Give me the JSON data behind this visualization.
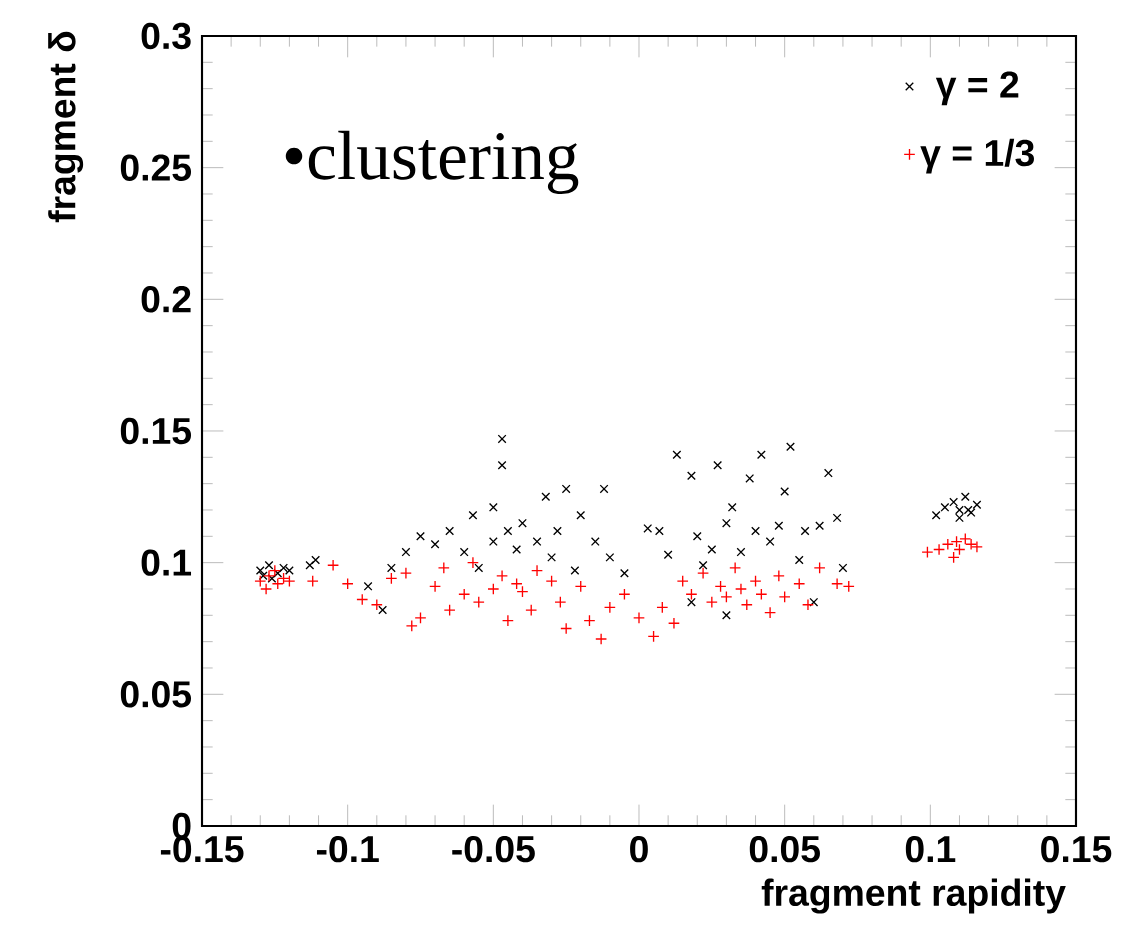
{
  "chart_data": {
    "type": "scatter",
    "xlabel": "fragment rapidity",
    "ylabel": "fragment δ",
    "annotations": [
      "•clustering"
    ],
    "xlim": [
      -0.15,
      0.15
    ],
    "ylim": [
      0,
      0.3
    ],
    "xticks": [
      -0.15,
      -0.1,
      -0.05,
      0,
      0.05,
      0.1,
      0.15
    ],
    "yticks": [
      0,
      0.05,
      0.1,
      0.15,
      0.2,
      0.25,
      0.3
    ],
    "legend": "top right",
    "grid": false,
    "series": [
      {
        "name": "γ = 2",
        "color": "#000000",
        "marker": "cross",
        "x": [
          -0.13,
          -0.127,
          -0.124,
          -0.122,
          -0.129,
          -0.12,
          -0.126,
          -0.113,
          -0.111,
          -0.093,
          -0.088,
          -0.085,
          -0.08,
          -0.075,
          -0.07,
          -0.065,
          -0.06,
          -0.057,
          -0.055,
          -0.05,
          -0.05,
          -0.047,
          -0.047,
          -0.045,
          -0.042,
          -0.04,
          -0.035,
          -0.032,
          -0.03,
          -0.028,
          -0.025,
          -0.022,
          -0.02,
          -0.015,
          -0.012,
          -0.01,
          -0.005,
          0.003,
          0.007,
          0.01,
          0.013,
          0.018,
          0.02,
          0.025,
          0.027,
          0.03,
          0.032,
          0.035,
          0.038,
          0.04,
          0.042,
          0.045,
          0.048,
          0.05,
          0.052,
          0.055,
          0.057,
          0.06,
          0.062,
          0.065,
          0.068,
          0.07,
          0.018,
          0.03,
          0.022,
          0.102,
          0.105,
          0.108,
          0.11,
          0.112,
          0.114,
          0.116,
          0.11,
          0.113
        ],
        "values": [
          0.097,
          0.099,
          0.096,
          0.098,
          0.095,
          0.097,
          0.094,
          0.099,
          0.101,
          0.091,
          0.082,
          0.098,
          0.104,
          0.11,
          0.107,
          0.112,
          0.104,
          0.118,
          0.098,
          0.121,
          0.108,
          0.147,
          0.137,
          0.112,
          0.105,
          0.115,
          0.108,
          0.125,
          0.102,
          0.112,
          0.128,
          0.097,
          0.118,
          0.108,
          0.128,
          0.102,
          0.096,
          0.113,
          0.112,
          0.103,
          0.141,
          0.133,
          0.11,
          0.105,
          0.137,
          0.115,
          0.121,
          0.104,
          0.132,
          0.112,
          0.141,
          0.108,
          0.114,
          0.127,
          0.144,
          0.101,
          0.112,
          0.085,
          0.114,
          0.134,
          0.117,
          0.098,
          0.085,
          0.08,
          0.099,
          0.118,
          0.121,
          0.123,
          0.12,
          0.125,
          0.119,
          0.122,
          0.117,
          0.12
        ]
      },
      {
        "name": "γ = 1/3",
        "color": "#ff0000",
        "marker": "plus",
        "x": [
          -0.13,
          -0.127,
          -0.124,
          -0.122,
          -0.128,
          -0.125,
          -0.12,
          -0.112,
          -0.105,
          -0.1,
          -0.095,
          -0.09,
          -0.085,
          -0.08,
          -0.078,
          -0.075,
          -0.07,
          -0.067,
          -0.065,
          -0.06,
          -0.057,
          -0.055,
          -0.05,
          -0.047,
          -0.045,
          -0.042,
          -0.04,
          -0.037,
          -0.035,
          -0.03,
          -0.027,
          -0.025,
          -0.02,
          -0.017,
          -0.013,
          -0.01,
          -0.005,
          0.0,
          0.005,
          0.008,
          0.012,
          0.015,
          0.018,
          0.022,
          0.025,
          0.028,
          0.03,
          0.033,
          0.035,
          0.037,
          0.04,
          0.042,
          0.045,
          0.048,
          0.05,
          0.055,
          0.058,
          0.062,
          0.068,
          0.072,
          0.099,
          0.103,
          0.106,
          0.109,
          0.112,
          0.114,
          0.116,
          0.11,
          0.108
        ],
        "values": [
          0.093,
          0.095,
          0.092,
          0.094,
          0.09,
          0.097,
          0.093,
          0.093,
          0.099,
          0.092,
          0.086,
          0.084,
          0.094,
          0.096,
          0.076,
          0.079,
          0.091,
          0.098,
          0.082,
          0.088,
          0.1,
          0.085,
          0.09,
          0.095,
          0.078,
          0.092,
          0.089,
          0.082,
          0.097,
          0.093,
          0.085,
          0.075,
          0.091,
          0.078,
          0.071,
          0.083,
          0.088,
          0.079,
          0.072,
          0.083,
          0.077,
          0.093,
          0.088,
          0.096,
          0.085,
          0.091,
          0.087,
          0.098,
          0.09,
          0.084,
          0.093,
          0.088,
          0.081,
          0.095,
          0.087,
          0.092,
          0.084,
          0.098,
          0.092,
          0.091,
          0.104,
          0.105,
          0.107,
          0.108,
          0.109,
          0.107,
          0.106,
          0.105,
          0.102
        ]
      }
    ]
  }
}
